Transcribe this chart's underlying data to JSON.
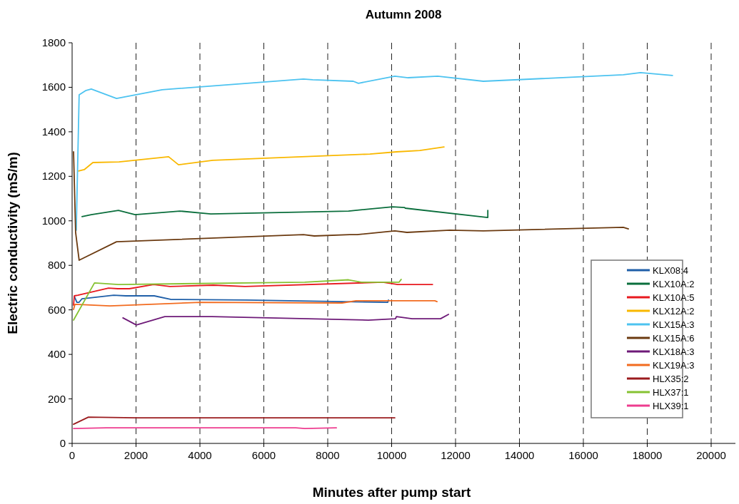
{
  "chart_data": {
    "type": "line",
    "title": "Autumn 2008",
    "xlabel": "Minutes after pump start",
    "ylabel": "Electric conductivity (mS/m)",
    "xlim": [
      0,
      20000
    ],
    "xticks": [
      0,
      2000,
      4000,
      6000,
      8000,
      10000,
      12000,
      14000,
      16000,
      18000,
      20000
    ],
    "ylim": [
      0,
      1800
    ],
    "yticks": [
      0,
      200,
      400,
      600,
      800,
      1000,
      1200,
      1400,
      1600,
      1800
    ],
    "grid": "x",
    "legend": "right",
    "marker": "none",
    "line_style": "solid",
    "series": [
      {
        "name": "KLX08:4",
        "color": "#1f5fa8",
        "x": [
          70,
          150,
          220,
          310,
          1300,
          1680,
          2570,
          3080,
          5450,
          9880,
          9900
        ],
        "values": [
          660,
          634,
          634,
          650,
          666,
          663,
          663,
          647,
          644,
          634,
          644
        ]
      },
      {
        "name": "KLX10A:2",
        "color": "#0a6e3c",
        "x": [
          310,
          600,
          1450,
          1970,
          3370,
          4340,
          8650,
          10030,
          10410,
          10420,
          13010,
          13010
        ],
        "values": [
          1019,
          1028,
          1047,
          1028,
          1044,
          1031,
          1044,
          1063,
          1060,
          1057,
          1015,
          1047
        ]
      },
      {
        "name": "KLX10A:5",
        "color": "#e8191f",
        "x": [
          45,
          70,
          180,
          1140,
          1430,
          1790,
          2550,
          3060,
          4420,
          5410,
          9720,
          10190,
          11280
        ],
        "values": [
          621,
          663,
          666,
          698,
          695,
          695,
          714,
          705,
          711,
          705,
          724,
          714,
          714
        ]
      },
      {
        "name": "KLX12A:2",
        "color": "#f9b800",
        "x": [
          200,
          380,
          650,
          1470,
          3020,
          3330,
          4400,
          9320,
          10150,
          10880,
          11640
        ],
        "values": [
          1224,
          1230,
          1262,
          1265,
          1288,
          1252,
          1272,
          1300,
          1310,
          1316,
          1332
        ]
      },
      {
        "name": "KLX15A:3",
        "color": "#4dc3f0",
        "x": [
          130,
          220,
          420,
          600,
          1390,
          2820,
          7240,
          7530,
          8800,
          8960,
          10100,
          10520,
          11440,
          12870,
          17250,
          17790,
          18790
        ],
        "values": [
          958,
          1566,
          1585,
          1592,
          1550,
          1589,
          1637,
          1634,
          1627,
          1618,
          1650,
          1643,
          1650,
          1627,
          1656,
          1666,
          1653
        ]
      },
      {
        "name": "KLX15A:6",
        "color": "#6b3a10",
        "x": [
          45,
          110,
          220,
          1390,
          7240,
          7580,
          8690,
          8920,
          10100,
          10480,
          11820,
          12870,
          17250,
          17410
        ],
        "values": [
          1310,
          948,
          823,
          906,
          938,
          932,
          938,
          938,
          955,
          948,
          958,
          955,
          971,
          964
        ]
      },
      {
        "name": "KLX18A:3",
        "color": "#6e1a78",
        "x": [
          1590,
          2010,
          2900,
          4380,
          9270,
          10120,
          10150,
          10640,
          11530,
          11780
        ],
        "values": [
          564,
          532,
          570,
          570,
          554,
          560,
          570,
          560,
          560,
          580
        ]
      },
      {
        "name": "KLX19A:3",
        "color": "#f26b1f",
        "x": [
          45,
          90,
          1180,
          4020,
          8450,
          8890,
          10170,
          11350,
          11420
        ],
        "values": [
          602,
          625,
          618,
          634,
          631,
          641,
          641,
          641,
          637
        ]
      },
      {
        "name": "HLX35:2",
        "color": "#9b1b1e",
        "x": [
          45,
          510,
          2010,
          10100
        ],
        "values": [
          86,
          118,
          115,
          115
        ]
      },
      {
        "name": "HLX37:1",
        "color": "#86c232",
        "x": [
          45,
          700,
          1450,
          7280,
          8650,
          9050,
          10230,
          10300
        ],
        "values": [
          554,
          721,
          714,
          724,
          735,
          724,
          724,
          737
        ]
      },
      {
        "name": "HLX39:1",
        "color": "#ee3c8f",
        "x": [
          45,
          1070,
          7000,
          7280,
          8270
        ],
        "values": [
          67,
          70,
          70,
          67,
          70
        ]
      }
    ]
  }
}
